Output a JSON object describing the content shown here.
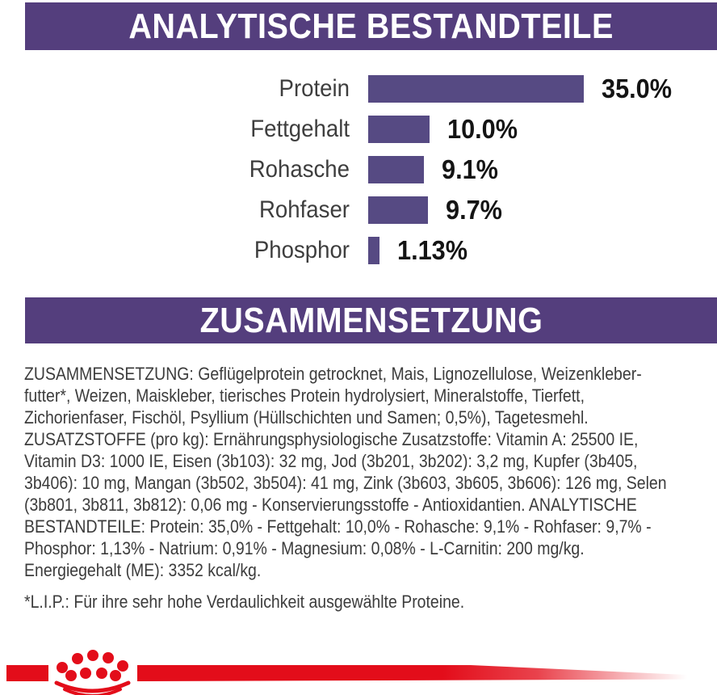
{
  "colors": {
    "banner_purple": "#543E7D",
    "bar_purple": "#564A83",
    "brand_red": "#E30D1A",
    "body_text": "#3C3C3C",
    "value_text": "#141414"
  },
  "sections": {
    "analytical": {
      "title": "ANALYTISCHE BESTANDTEILE"
    },
    "composition": {
      "title": "ZUSAMMENSETZUNG"
    }
  },
  "chart": {
    "rows": [
      {
        "label": "Protein",
        "value": 35.0,
        "display": "35.0%"
      },
      {
        "label": "Fettgehalt",
        "value": 10.0,
        "display": "10.0%"
      },
      {
        "label": "Rohasche",
        "value": 9.1,
        "display": "9.1%"
      },
      {
        "label": "Rohfaser",
        "value": 9.7,
        "display": "9.7%"
      },
      {
        "label": "Phosphor",
        "value": 1.13,
        "display": "1.13%"
      }
    ]
  },
  "chart_data": {
    "type": "bar",
    "orientation": "horizontal",
    "title": "ANALYTISCHE BESTANDTEILE",
    "categories": [
      "Protein",
      "Fettgehalt",
      "Rohasche",
      "Rohfaser",
      "Phosphor"
    ],
    "values": [
      35.0,
      10.0,
      9.1,
      9.7,
      1.13
    ],
    "value_labels": [
      "35.0%",
      "10.0%",
      "9.1%",
      "9.7%",
      "1.13%"
    ],
    "unit": "%",
    "xlim": [
      0,
      35
    ],
    "grid": false,
    "bar_color": "#564A83"
  },
  "composition_text": {
    "lines": [
      "ZUSAMMENSETZUNG: Geflügelprotein getrocknet, Mais, Lignozellulose, Weizenkleber-",
      "futter*, Weizen, Maiskleber, tierisches Protein hydrolysiert, Mineralstoffe, Tierfett,",
      "Zichorienfaser, Fischöl, Psyllium (Hüllschichten und Samen; 0,5%), Tagetesmehl.",
      "ZUSATZSTOFFE (pro kg): Ernährungsphysiologische Zusatzstoffe: Vitamin A: 25500 IE,",
      "Vitamin D3: 1000 IE, Eisen (3b103): 32 mg, Jod (3b201, 3b202): 3,2 mg, Kupfer (3b405,",
      "3b406): 10 mg, Mangan (3b502, 3b504): 41 mg, Zink (3b603, 3b605, 3b606): 126 mg, Selen",
      "(3b801, 3b811, 3b812): 0,06 mg - Konservierungsstoffe - Antioxidantien. ANALYTISCHE",
      "BESTANDTEILE: Protein: 35,0% - Fettgehalt: 10,0% - Rohasche: 9,1% - Rohfaser: 9,7% -",
      "Phosphor: 1,13% - Natrium: 0,91% - Magnesium: 0,08% - L-Carnitin: 200 mg/kg.",
      "Energiegehalt (ME): 3352 kcal/kg."
    ]
  },
  "footnote": "*L.I.P.: Für ihre sehr hohe Verdaulichkeit ausgewählte Proteine.",
  "footer": {
    "brand_icon": "royal-canin-crown-icon"
  }
}
